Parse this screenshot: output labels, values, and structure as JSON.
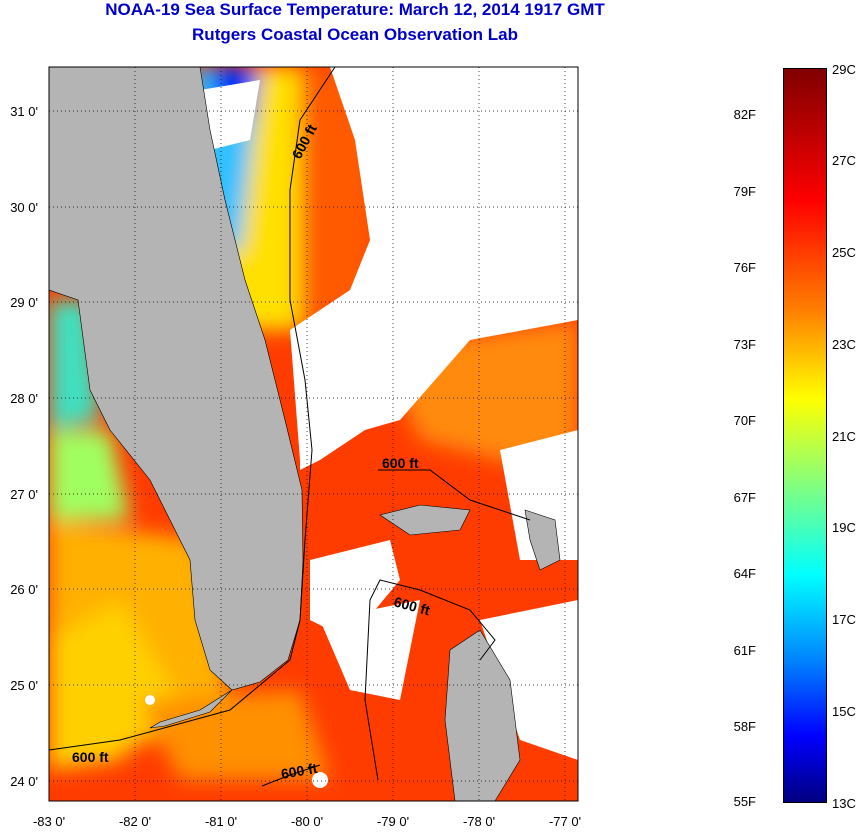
{
  "title": "NOAA-19 Sea Surface Temperature:  March 12, 2014 1917 GMT",
  "subtitle": "Rutgers Coastal Ocean Observation Lab",
  "map": {
    "lat_labels": [
      "31 0'",
      "30 0'",
      "29 0'",
      "28 0'",
      "27 0'",
      "26 0'",
      "25 0'",
      "24 0'"
    ],
    "lon_labels": [
      "-83 0'",
      "-82 0'",
      "-81 0'",
      "-80 0'",
      "-79 0'",
      "-78 0'",
      "-77 0'"
    ],
    "contour_label": "600 ft",
    "colors": {
      "land": "#b4b4b4",
      "cloud": "#ffffff"
    }
  },
  "colorbar": {
    "fahrenheit": [
      "82F",
      "79F",
      "76F",
      "73F",
      "70F",
      "67F",
      "64F",
      "61F",
      "58F",
      "55F"
    ],
    "celsius": [
      "29C",
      "27C",
      "25C",
      "23C",
      "21C",
      "19C",
      "17C",
      "15C",
      "13C"
    ],
    "range_c": [
      13,
      29
    ]
  }
}
